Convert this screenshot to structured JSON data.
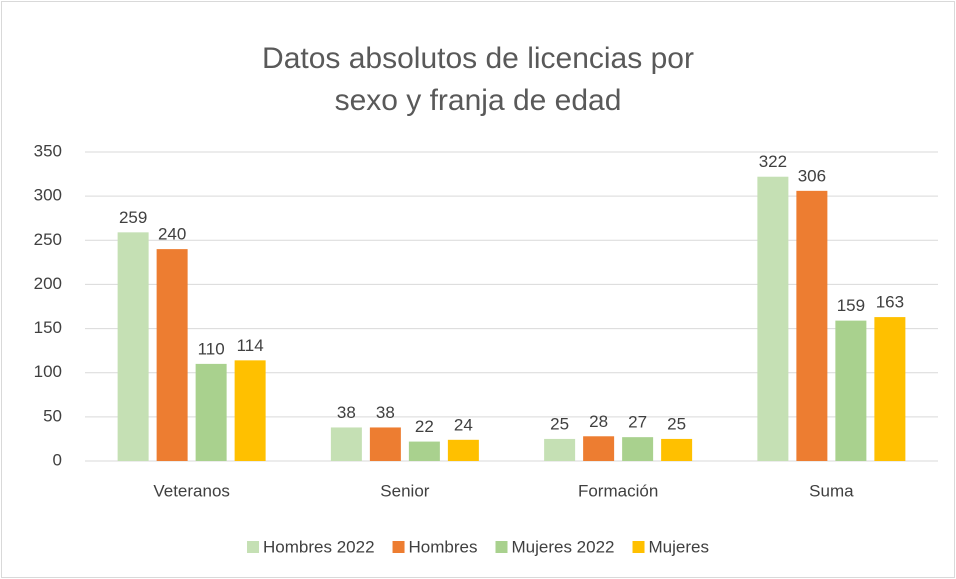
{
  "chart_data": {
    "type": "bar",
    "title": "Datos absolutos de licencias por sexo y franja de edad",
    "categories": [
      "Veteranos",
      "Senior",
      "Formación",
      "Suma"
    ],
    "series": [
      {
        "name": "Hombres 2022",
        "color": "#c5e0b4",
        "values": [
          259,
          38,
          25,
          322
        ]
      },
      {
        "name": "Hombres",
        "color": "#ed7d31",
        "values": [
          240,
          38,
          28,
          306
        ]
      },
      {
        "name": "Mujeres 2022",
        "color": "#a9d18e",
        "values": [
          110,
          22,
          27,
          159
        ]
      },
      {
        "name": "Mujeres",
        "color": "#ffc000",
        "values": [
          114,
          24,
          25,
          163
        ]
      }
    ],
    "ylim": [
      0,
      350
    ],
    "yticks": [
      0,
      50,
      100,
      150,
      200,
      250,
      300,
      350
    ],
    "grid": true,
    "legend": "bottom"
  }
}
